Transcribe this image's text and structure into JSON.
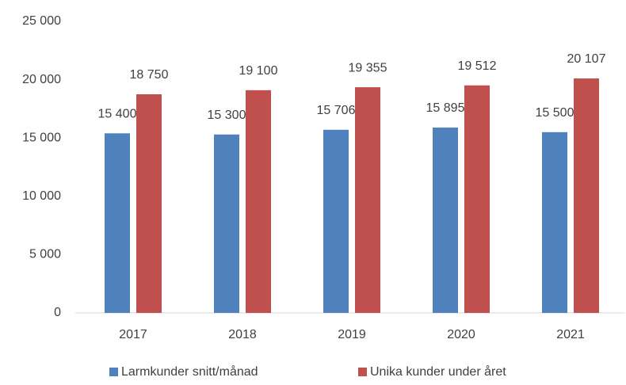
{
  "chart_data": {
    "type": "bar",
    "categories": [
      "2017",
      "2018",
      "2019",
      "2020",
      "2021"
    ],
    "series": [
      {
        "name": "Larmkunder snitt/månad",
        "color": "#4f81bd",
        "values": [
          15400,
          15300,
          15706,
          15895,
          15500
        ],
        "value_labels": [
          "15 400",
          "15 300",
          "15 706",
          "15 895",
          "15 500"
        ]
      },
      {
        "name": "Unika kunder under året",
        "color": "#c0504d",
        "values": [
          18750,
          19100,
          19355,
          19512,
          20107
        ],
        "value_labels": [
          "18 750",
          "19 100",
          "19 355",
          "19 512",
          "20 107"
        ]
      }
    ],
    "ylim": [
      0,
      25000
    ],
    "yticks": [
      {
        "value": 0,
        "label": "0"
      },
      {
        "value": 5000,
        "label": "5 000"
      },
      {
        "value": 10000,
        "label": "10 000"
      },
      {
        "value": 15000,
        "label": "15 000"
      },
      {
        "value": 20000,
        "label": "20 000"
      },
      {
        "value": 25000,
        "label": "25 000"
      }
    ],
    "grid": false,
    "legend": "bottom"
  }
}
